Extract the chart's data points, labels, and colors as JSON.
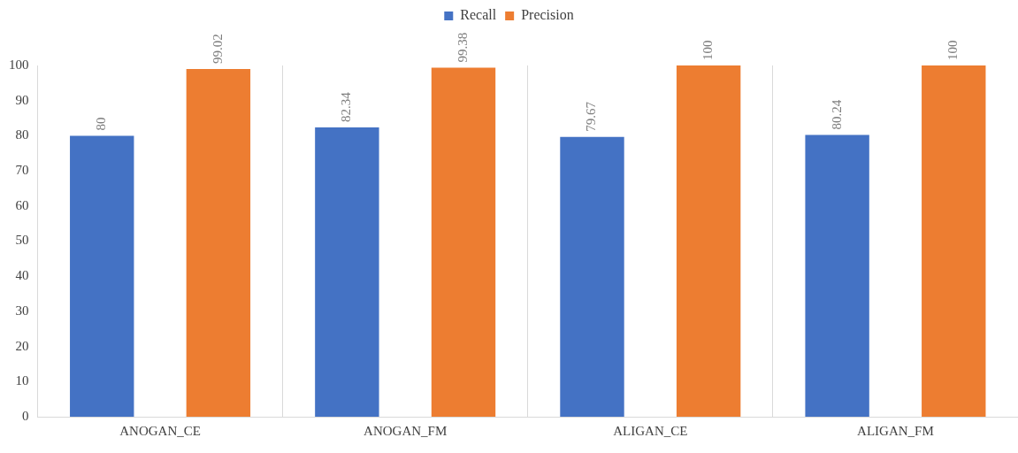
{
  "chart_data": {
    "type": "bar",
    "categories": [
      "ANOGAN_CE",
      "ANOGAN_FM",
      "ALIGAN_CE",
      "ALIGAN_FM"
    ],
    "series": [
      {
        "name": "Recall",
        "color": "#4472c4",
        "values": [
          80,
          82.34,
          79.67,
          80.24
        ]
      },
      {
        "name": "Precision",
        "color": "#ed7d31",
        "values": [
          99.02,
          99.38,
          100,
          100
        ]
      }
    ],
    "ylim": [
      0,
      100
    ],
    "yticks": [
      0,
      10,
      20,
      30,
      40,
      50,
      60,
      70,
      80,
      90,
      100
    ],
    "grid": "x",
    "legend": "top",
    "data_labels": true
  }
}
